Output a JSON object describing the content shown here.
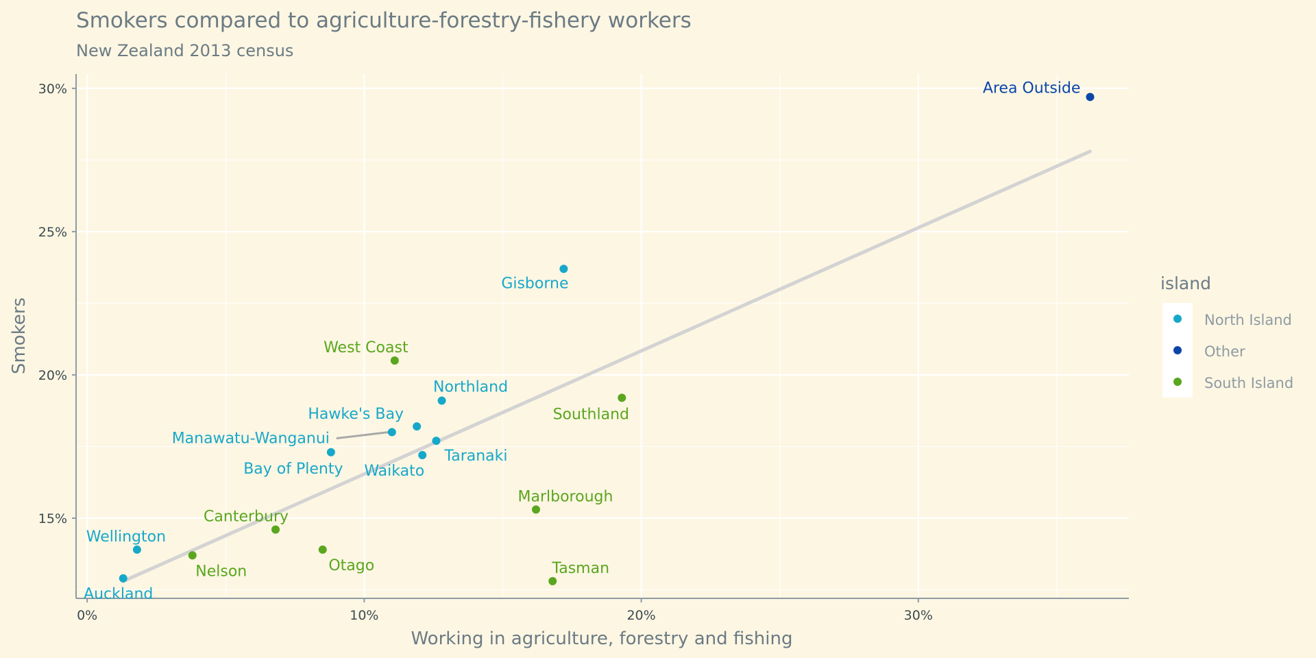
{
  "chart_data": {
    "type": "scatter",
    "title": "Smokers compared to agriculture-forestry-fishery workers",
    "subtitle": "New Zealand 2013 census",
    "xlabel": "Working in agriculture, forestry and fishing",
    "ylabel": "Smokers",
    "xlim": [
      -0.4,
      37.6
    ],
    "ylim": [
      12.2,
      30.5
    ],
    "x_ticks": [
      0,
      10,
      20,
      30
    ],
    "x_tick_labels": [
      "0%",
      "10%",
      "20%",
      "30%"
    ],
    "y_ticks": [
      15,
      20,
      25,
      30
    ],
    "y_tick_labels": [
      "15%",
      "20%",
      "25%",
      "30%"
    ],
    "grid": true,
    "legend": {
      "title": "island",
      "position": "right",
      "entries": [
        {
          "name": "North Island",
          "color": "#17a8c9"
        },
        {
          "name": "Other",
          "color": "#0b45a8"
        },
        {
          "name": "South Island",
          "color": "#5aa61e"
        }
      ]
    },
    "trend_line": {
      "x": [
        1.3,
        36.2
      ],
      "y": [
        12.8,
        27.8
      ],
      "color": "#d3d3d3"
    },
    "points": [
      {
        "label": "Area Outside",
        "island": "Other",
        "x": 36.2,
        "y": 29.7
      },
      {
        "label": "Gisborne",
        "island": "North Island",
        "x": 17.2,
        "y": 23.7
      },
      {
        "label": "West Coast",
        "island": "South Island",
        "x": 11.1,
        "y": 20.5
      },
      {
        "label": "Northland",
        "island": "North Island",
        "x": 12.8,
        "y": 19.1
      },
      {
        "label": "Southland",
        "island": "South Island",
        "x": 19.3,
        "y": 19.2
      },
      {
        "label": "Hawke's Bay",
        "island": "North Island",
        "x": 11.9,
        "y": 18.2
      },
      {
        "label": "Manawatu-Wanganui",
        "island": "North Island",
        "x": 11.0,
        "y": 18.0
      },
      {
        "label": "Taranaki",
        "island": "North Island",
        "x": 12.6,
        "y": 17.7
      },
      {
        "label": "Bay of Plenty",
        "island": "North Island",
        "x": 8.8,
        "y": 17.3
      },
      {
        "label": "Waikato",
        "island": "North Island",
        "x": 12.1,
        "y": 17.2
      },
      {
        "label": "Marlborough",
        "island": "South Island",
        "x": 16.2,
        "y": 15.3
      },
      {
        "label": "Canterbury",
        "island": "South Island",
        "x": 6.8,
        "y": 14.6
      },
      {
        "label": "Otago",
        "island": "South Island",
        "x": 8.5,
        "y": 13.9
      },
      {
        "label": "Wellington",
        "island": "North Island",
        "x": 1.8,
        "y": 13.9
      },
      {
        "label": "Nelson",
        "island": "South Island",
        "x": 3.8,
        "y": 13.7
      },
      {
        "label": "Tasman",
        "island": "South Island",
        "x": 16.8,
        "y": 12.8
      },
      {
        "label": "Auckland",
        "island": "North Island",
        "x": 1.3,
        "y": 12.9
      }
    ]
  }
}
